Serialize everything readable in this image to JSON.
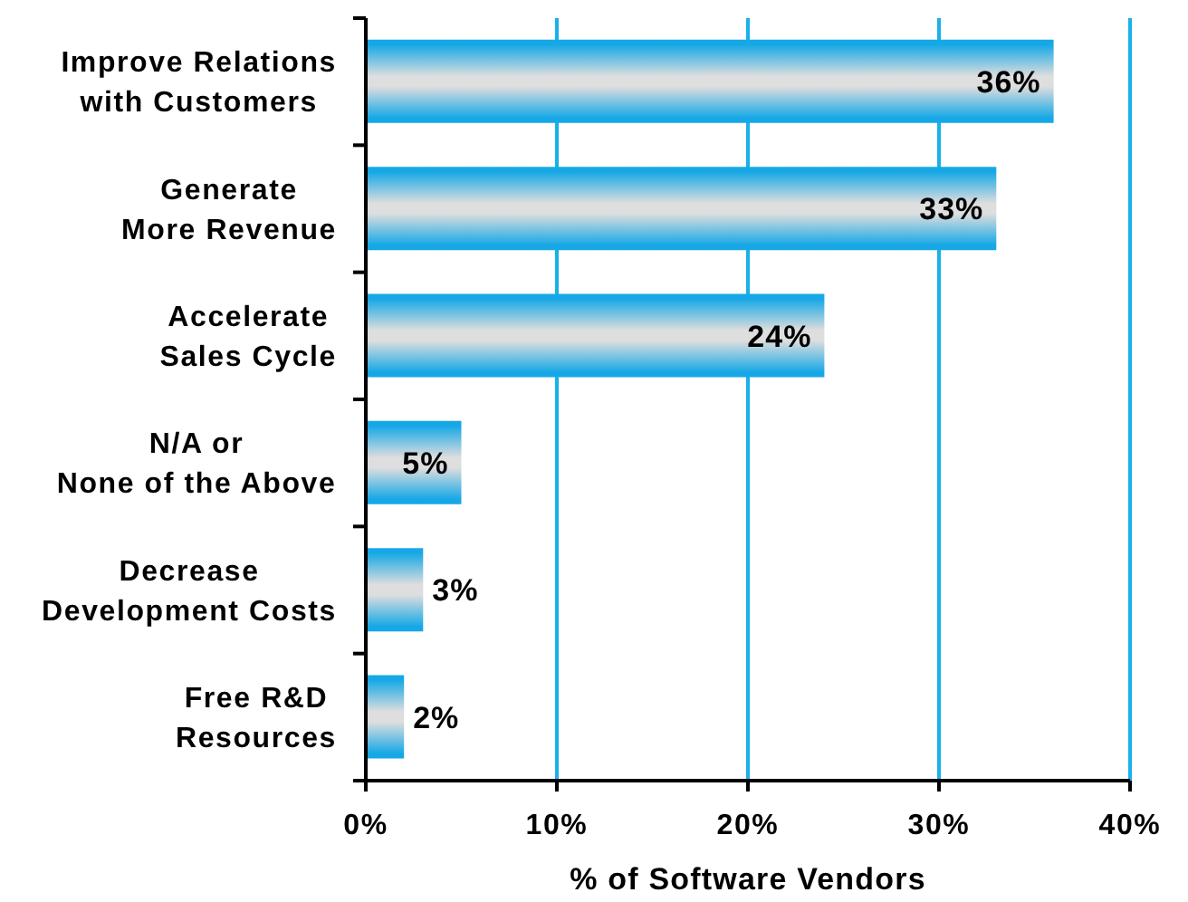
{
  "chart_data": {
    "type": "bar",
    "orientation": "horizontal",
    "xlabel": "% of Software Vendors",
    "categories": [
      "Improve Relations\nwith Customers",
      "Generate\nMore Revenue",
      "Accelerate\nSales Cycle",
      "N/A or\nNone of the Above",
      "Decrease\nDevelopment Costs",
      "Free R&D\nResources"
    ],
    "values": [
      36,
      33,
      24,
      5,
      3,
      2
    ],
    "value_labels": [
      "36%",
      "33%",
      "24%",
      "5%",
      "3%",
      "2%"
    ],
    "color": "#16a8e6",
    "xlim": [
      0,
      40
    ],
    "xticks": [
      {
        "value": 0,
        "label": "0%"
      },
      {
        "value": 10,
        "label": "10%"
      },
      {
        "value": 20,
        "label": "20%"
      },
      {
        "value": 30,
        "label": "30%"
      },
      {
        "value": 40,
        "label": "40%"
      }
    ],
    "grid": "x"
  }
}
